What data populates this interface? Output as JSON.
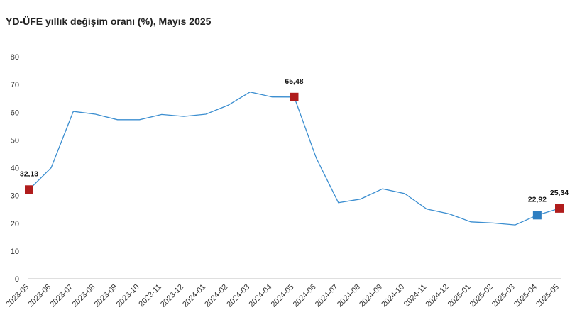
{
  "chart_data": {
    "type": "line",
    "title": "YD-ÜFE yıllık değişim oranı (%), Mayıs 2025",
    "xlabel": "",
    "ylabel": "",
    "ylim": [
      0,
      80
    ],
    "yticks": [
      "0",
      "10",
      "20",
      "30",
      "40",
      "50",
      "60",
      "70",
      "80"
    ],
    "grid": false,
    "categories": [
      "2023-05",
      "2023-06",
      "2023-07",
      "2023-08",
      "2023-09",
      "2023-10",
      "2023-11",
      "2023-12",
      "2024-01",
      "2024-02",
      "2024-03",
      "2024-04",
      "2024-05",
      "2024-06",
      "2024-07",
      "2024-08",
      "2024-09",
      "2024-10",
      "2024-11",
      "2024-12",
      "2025-01",
      "2025-02",
      "2025-03",
      "2025-04",
      "2025-05"
    ],
    "values": [
      32.13,
      40.0,
      60.3,
      59.3,
      57.3,
      57.3,
      59.2,
      58.5,
      59.3,
      62.5,
      67.3,
      65.5,
      65.48,
      43.5,
      27.4,
      28.7,
      32.4,
      30.7,
      25.1,
      23.4,
      20.5,
      20.1,
      19.4,
      22.92,
      25.34
    ],
    "line_color": "#3b8ed0",
    "highlights": [
      {
        "index": 0,
        "label": "32,13",
        "color": "#b01c1c"
      },
      {
        "index": 12,
        "label": "65,48",
        "color": "#b01c1c"
      },
      {
        "index": 23,
        "label": "22,92",
        "color": "#2e7ec1"
      },
      {
        "index": 24,
        "label": "25,34",
        "color": "#b01c1c"
      }
    ]
  }
}
